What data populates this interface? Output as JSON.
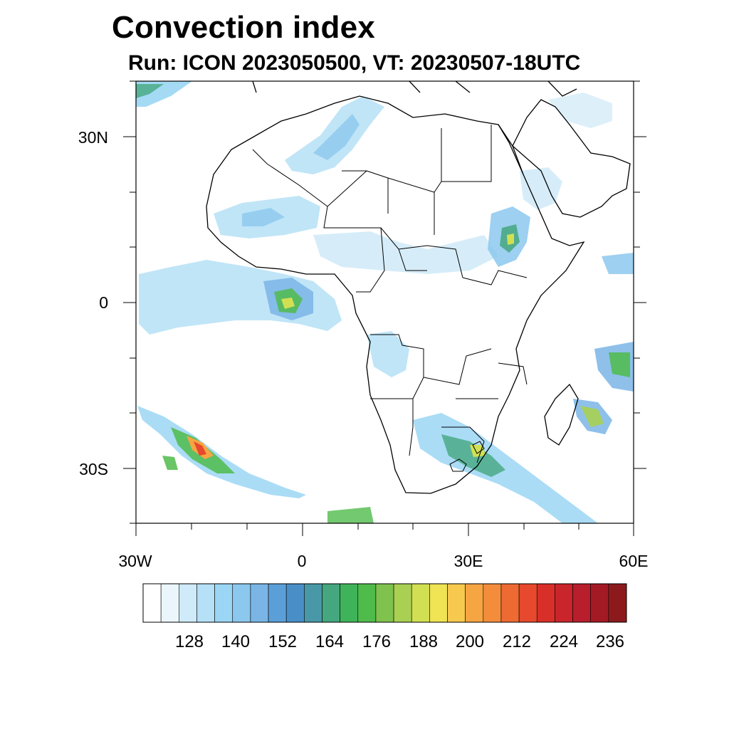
{
  "header": {
    "title": "Convection index",
    "subtitle": "Run: ICON 2023050500,  VT: 20230507-18UTC"
  },
  "axes": {
    "lat_labels": [
      "30N",
      "0",
      "30S"
    ],
    "lon_labels": [
      "30W",
      "0",
      "30E",
      "60E"
    ],
    "lat_values": [
      30,
      0,
      -30
    ],
    "lon_values": [
      -30,
      0,
      30,
      60
    ],
    "lon_range": [
      -30,
      60
    ],
    "lat_range": [
      -40,
      40
    ]
  },
  "colorbar": {
    "labels": [
      "128",
      "140",
      "152",
      "164",
      "176",
      "188",
      "200",
      "212",
      "224",
      "236"
    ],
    "colors": [
      "#ffffff",
      "#eaf6fc",
      "#cfeaf8",
      "#b5e0f6",
      "#9bd6f4",
      "#8cc8ee",
      "#7ab5e6",
      "#5b9fd8",
      "#4a8ec7",
      "#4998a8",
      "#45a77f",
      "#3fb359",
      "#4fbb4b",
      "#7fc24e",
      "#a9d052",
      "#d1e053",
      "#f0e354",
      "#f8c94f",
      "#f6a543",
      "#f38d3c",
      "#ee6a33",
      "#e6492d",
      "#d83028",
      "#c9252b",
      "#b81e2b",
      "#a31a24",
      "#8c1a1c"
    ]
  }
}
